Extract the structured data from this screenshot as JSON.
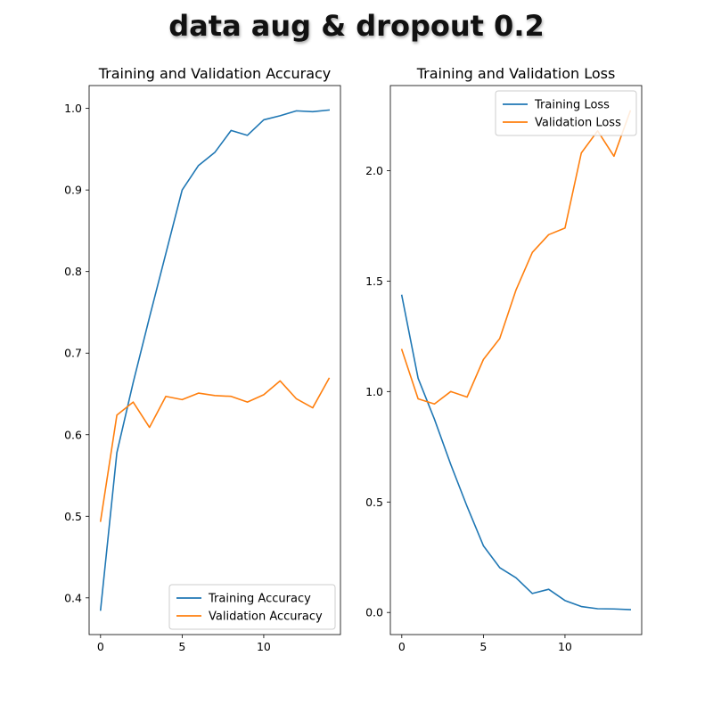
{
  "figure": {
    "suptitle": "data aug & dropout 0.2"
  },
  "colors": {
    "training": "#1f77b4",
    "validation": "#ff7f0e"
  },
  "chart_data": [
    {
      "type": "line",
      "title": "Training and Validation Accuracy",
      "xlabel": "",
      "ylabel": "",
      "x": [
        0,
        1,
        2,
        3,
        4,
        5,
        6,
        7,
        8,
        9,
        10,
        11,
        12,
        13,
        14
      ],
      "xlim": [
        -0.7,
        14.7
      ],
      "ylim": [
        0.355,
        1.028
      ],
      "xticks": [
        0,
        5,
        10
      ],
      "yticks": [
        0.4,
        0.5,
        0.6,
        0.7,
        0.8,
        0.9,
        1.0
      ],
      "ytick_labels": [
        "0.4",
        "0.5",
        "0.6",
        "0.7",
        "0.8",
        "0.9",
        "1.0"
      ],
      "legend_position": "lower right",
      "series": [
        {
          "name": "Training Accuracy",
          "color": "#1f77b4",
          "values": [
            0.385,
            0.578,
            0.664,
            0.744,
            0.822,
            0.9,
            0.93,
            0.946,
            0.973,
            0.967,
            0.986,
            0.991,
            0.997,
            0.996,
            0.998
          ]
        },
        {
          "name": "Validation Accuracy",
          "color": "#ff7f0e",
          "values": [
            0.494,
            0.624,
            0.64,
            0.609,
            0.647,
            0.643,
            0.651,
            0.648,
            0.647,
            0.64,
            0.649,
            0.666,
            0.644,
            0.633,
            0.669
          ]
        }
      ]
    },
    {
      "type": "line",
      "title": "Training and Validation Loss",
      "xlabel": "",
      "ylabel": "",
      "x": [
        0,
        1,
        2,
        3,
        4,
        5,
        6,
        7,
        8,
        9,
        10,
        11,
        12,
        13,
        14
      ],
      "xlim": [
        -0.7,
        14.7
      ],
      "ylim": [
        -0.1,
        2.385
      ],
      "xticks": [
        0,
        5,
        10
      ],
      "yticks": [
        0.0,
        0.5,
        1.0,
        1.5,
        2.0
      ],
      "ytick_labels": [
        "0.0",
        "0.5",
        "1.0",
        "1.5",
        "2.0"
      ],
      "legend_position": "upper right",
      "series": [
        {
          "name": "Training Loss",
          "color": "#1f77b4",
          "values": [
            1.435,
            1.06,
            0.875,
            0.67,
            0.48,
            0.302,
            0.203,
            0.157,
            0.086,
            0.105,
            0.054,
            0.027,
            0.017,
            0.016,
            0.013
          ]
        },
        {
          "name": "Validation Loss",
          "color": "#ff7f0e",
          "values": [
            1.19,
            0.967,
            0.944,
            1.0,
            0.975,
            1.145,
            1.24,
            1.46,
            1.63,
            1.71,
            1.74,
            2.08,
            2.18,
            2.065,
            2.27
          ]
        }
      ]
    }
  ]
}
